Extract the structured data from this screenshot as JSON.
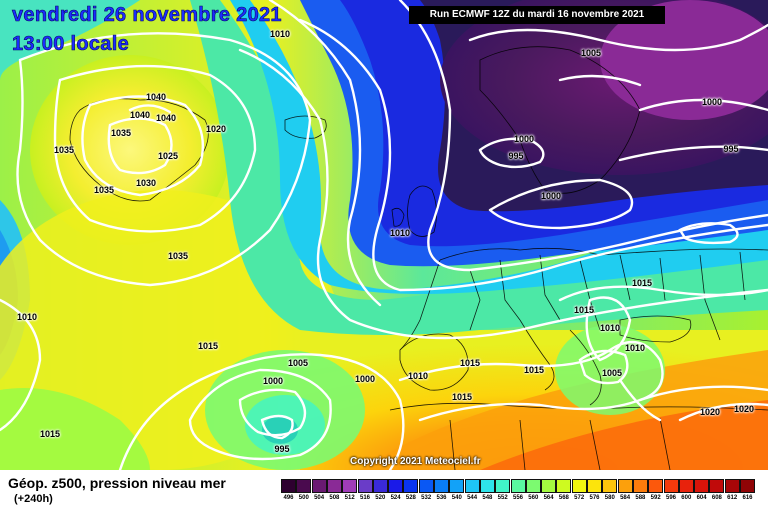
{
  "title": {
    "date": "vendredi 26 novembre 2021",
    "time": "13:00 locale"
  },
  "run_info": "Run ECMWF 12Z du mardi 16 novembre 2021",
  "copyright": "Copyright 2021 Meteociel.fr",
  "legend": {
    "title": "Géop. z500, pression niveau mer",
    "subtitle": "(+240h)",
    "scale_values": [
      "496",
      "500",
      "504",
      "508",
      "512",
      "516",
      "520",
      "524",
      "528",
      "532",
      "536",
      "540",
      "544",
      "548",
      "552",
      "556",
      "560",
      "564",
      "568",
      "572",
      "576",
      "580",
      "584",
      "588",
      "592",
      "596",
      "600",
      "604",
      "608",
      "612",
      "616"
    ],
    "scale_colors": [
      "#2e0030",
      "#4a0a4e",
      "#6a1a72",
      "#8a2a96",
      "#a03cb8",
      "#6a3cc8",
      "#3a2ad8",
      "#1a1ae8",
      "#0a34f0",
      "#0a58f4",
      "#0a7cf6",
      "#12a2f8",
      "#1ec6f6",
      "#2ee4ea",
      "#40f4c8",
      "#5af8a0",
      "#7cfa70",
      "#a4fa40",
      "#cefa20",
      "#f0f410",
      "#fce40c",
      "#fcc40c",
      "#fca00c",
      "#fc7c0c",
      "#fc580c",
      "#f43a0c",
      "#e8220c",
      "#d8140a",
      "#c00a0a",
      "#a80608",
      "#900406"
    ]
  },
  "isobar_labels": [
    "1010",
    "1005",
    "1000",
    "995",
    "995",
    "1000",
    "1000",
    "1010",
    "1040",
    "1040",
    "1040",
    "1020",
    "1035",
    "1035",
    "1025",
    "1030",
    "1035",
    "1035",
    "1010",
    "1015",
    "1015",
    "1015",
    "1015",
    "1010",
    "1010",
    "1005",
    "1000",
    "1000",
    "1010",
    "1015",
    "1015",
    "1015",
    "1005",
    "995",
    "1015",
    "1020",
    "1020"
  ]
}
